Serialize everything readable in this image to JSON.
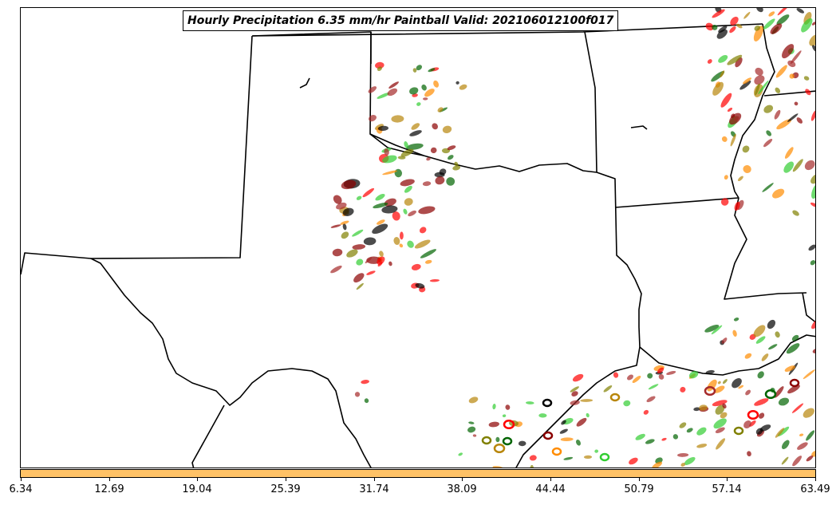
{
  "title": "Hourly Precipitation 6.35 mm/hr Paintball Valid: 202106012100f017",
  "colors": {
    "colorbar": "#ffc266",
    "boundaries": "#000000",
    "paintball_members": [
      "#8b0000",
      "#ff0000",
      "#ff8c00",
      "#006400",
      "#32cd32",
      "#808000",
      "#000000",
      "#b8860b",
      "#a52a2a"
    ]
  },
  "colorbar": {
    "ticks": [
      "6.34",
      "12.69",
      "19.04",
      "25.39",
      "31.74",
      "38.09",
      "44.44",
      "50.79",
      "57.14",
      "63.49"
    ]
  }
}
